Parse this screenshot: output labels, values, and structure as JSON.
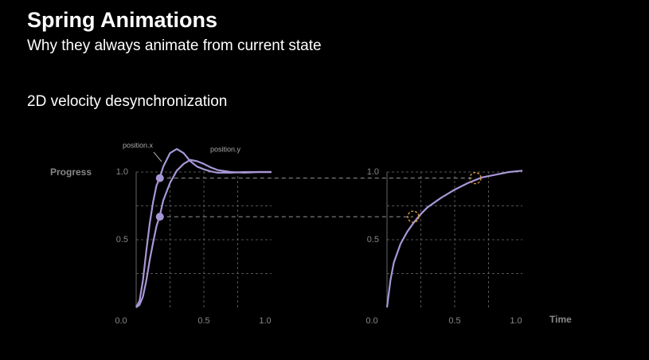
{
  "title": "Spring Animations",
  "subtitle": "Why they always animate from current state",
  "section": "2D velocity desynchronization",
  "chart_data": [
    {
      "type": "line",
      "y_label": "Progress",
      "xlim": [
        0,
        1
      ],
      "ylim": [
        0,
        1.2
      ],
      "xticks": [
        {
          "value": 0,
          "label": "0.0"
        },
        0.5,
        {
          "value": 1,
          "label": "1.0"
        }
      ],
      "yticks": [
        0.5,
        {
          "value": 1,
          "label": "1.0"
        }
      ],
      "xgrid": [
        0.25,
        0.5,
        0.75
      ],
      "ygrid": [
        0.25,
        0.5,
        0.75,
        1
      ],
      "x": [
        0,
        0.025,
        0.05,
        0.075,
        0.1,
        0.125,
        0.15,
        0.175,
        0.2,
        0.25,
        0.3,
        0.35,
        0.4,
        0.45,
        0.5,
        0.55,
        0.6,
        0.7,
        0.8,
        0.9,
        1.0
      ],
      "series": [
        {
          "name": "position.x",
          "color": "#a897d6",
          "values": [
            0,
            0.05,
            0.2,
            0.42,
            0.62,
            0.78,
            0.9,
            0.96,
            1.04,
            1.14,
            1.17,
            1.14,
            1.08,
            1.04,
            1.02,
            1.005,
            0.995,
            0.995,
            1.0,
            1.0,
            1.0
          ]
        },
        {
          "name": "position.y",
          "color": "#a897d6",
          "values": [
            0,
            0.02,
            0.08,
            0.2,
            0.35,
            0.48,
            0.6,
            0.68,
            0.79,
            0.92,
            1.01,
            1.06,
            1.09,
            1.08,
            1.06,
            1.035,
            1.015,
            1.0,
            0.995,
            1.0,
            1.0
          ]
        }
      ],
      "markers": {
        "x": [
          0.175,
          0.175
        ],
        "y": [
          0.955,
          0.67
        ]
      }
    },
    {
      "type": "line",
      "x_label": "Time",
      "xlim": [
        0,
        1
      ],
      "ylim": [
        0,
        1.2
      ],
      "xticks": [
        {
          "value": 0,
          "label": "0.0"
        },
        0.5,
        {
          "value": 1,
          "label": "1.0"
        }
      ],
      "yticks": [
        0.5,
        {
          "value": 1,
          "label": "1.0"
        }
      ],
      "xgrid": [
        0.25,
        0.5,
        0.75
      ],
      "ygrid": [
        0.25,
        0.5,
        0.75,
        1
      ],
      "x": [
        0,
        0.025,
        0.05,
        0.1,
        0.15,
        0.2,
        0.25,
        0.3,
        0.4,
        0.5,
        0.6,
        0.7,
        0.8,
        0.9,
        1.0
      ],
      "series": [
        {
          "name": "progress",
          "color": "#a897d6",
          "values": [
            0,
            0.2,
            0.33,
            0.47,
            0.56,
            0.63,
            0.69,
            0.74,
            0.81,
            0.87,
            0.92,
            0.96,
            0.98,
            1.0,
            1.01
          ]
        }
      ],
      "highlights": {
        "x": [
          0.194,
          0.653
        ],
        "y": [
          0.67,
          0.955
        ],
        "color": "#e0a040"
      }
    }
  ]
}
